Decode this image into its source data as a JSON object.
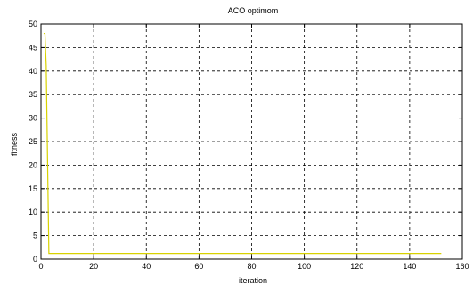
{
  "chart_data": {
    "type": "line",
    "title": "ACO optimom",
    "xlabel": "iteration",
    "ylabel": "fitness",
    "xlim": [
      0,
      160
    ],
    "ylim": [
      0,
      50
    ],
    "xticks": [
      0,
      20,
      40,
      60,
      80,
      100,
      120,
      140,
      160
    ],
    "yticks": [
      0,
      5,
      10,
      15,
      20,
      25,
      30,
      35,
      40,
      45,
      50
    ],
    "grid": true,
    "series": [
      {
        "color": "#d8d200",
        "x": [
          1,
          1.5,
          2,
          2,
          3,
          10,
          50,
          100,
          152
        ],
        "y": [
          48,
          48,
          41,
          40.5,
          1.2,
          1.2,
          1.2,
          1.2,
          1.2
        ]
      }
    ]
  }
}
